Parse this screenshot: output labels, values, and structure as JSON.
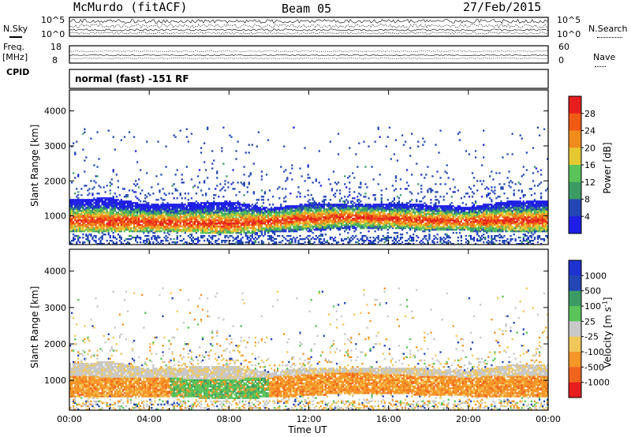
{
  "header": {
    "station": "McMurdo (fitACF)",
    "beam": "Beam 05",
    "date": "27/Feb/2015"
  },
  "strip_nsky": {
    "label": "N.Sky",
    "right_label": "N.Search",
    "ticks_left": [
      "10^5",
      "10^0"
    ],
    "ticks_right": [
      "10^5",
      "10^0"
    ]
  },
  "strip_freq": {
    "label_top": "Freq.",
    "label_bottom": "[MHz]",
    "right_label": "Nave",
    "ticks_left": [
      "18",
      "8"
    ],
    "ticks_right": [
      "60",
      "0"
    ]
  },
  "cpid": {
    "label": "CPID",
    "text": "normal (fast) -151 RF"
  },
  "colors": {
    "power": [
      "#1e1ee6",
      "#2346b4",
      "#3c9b64",
      "#5ac35a",
      "#e6c832",
      "#f08c1e",
      "#f05a14",
      "#e61e1e"
    ],
    "velocity": [
      "#e61e1e",
      "#f0641e",
      "#f59628",
      "#f0c85a",
      "#c8c8c8",
      "#5ac35a",
      "#3c9b64",
      "#2346b4",
      "#1e32d2"
    ]
  },
  "chart_data": [
    {
      "type": "heatmap",
      "title": "",
      "xlabel": "",
      "ylabel": "Slant Range [km]",
      "xlim": [
        "00:00",
        "00:00"
      ],
      "ylim": [
        180,
        4600
      ],
      "x_ticks": [
        "00:00",
        "04:00",
        "08:00",
        "12:00",
        "16:00",
        "20:00",
        "00:00"
      ],
      "y_ticks": [
        1000,
        2000,
        3000,
        4000
      ],
      "colorbar": {
        "label": "Power [dB]",
        "ticks": [
          "28",
          "24",
          "20",
          "16",
          "12",
          "8",
          "4"
        ],
        "range": [
          0,
          32
        ]
      },
      "field": "power",
      "band": [
        {
          "time_h": 0,
          "lower_km": 520,
          "upper_km": 1450,
          "core_km": 850
        },
        {
          "time_h": 2,
          "lower_km": 540,
          "upper_km": 1500,
          "core_km": 820
        },
        {
          "time_h": 4,
          "lower_km": 520,
          "upper_km": 1300,
          "core_km": 800
        },
        {
          "time_h": 6,
          "lower_km": 500,
          "upper_km": 1350,
          "core_km": 780
        },
        {
          "time_h": 8,
          "lower_km": 480,
          "upper_km": 1400,
          "core_km": 760
        },
        {
          "time_h": 10,
          "lower_km": 500,
          "upper_km": 1200,
          "core_km": 820
        },
        {
          "time_h": 12,
          "lower_km": 560,
          "upper_km": 1350,
          "core_km": 900
        },
        {
          "time_h": 14,
          "lower_km": 620,
          "upper_km": 1300,
          "core_km": 950
        },
        {
          "time_h": 16,
          "lower_km": 620,
          "upper_km": 1350,
          "core_km": 900
        },
        {
          "time_h": 18,
          "lower_km": 560,
          "upper_km": 1300,
          "core_km": 850
        },
        {
          "time_h": 20,
          "lower_km": 540,
          "upper_km": 1250,
          "core_km": 820
        },
        {
          "time_h": 22,
          "lower_km": 520,
          "upper_km": 1400,
          "core_km": 850
        },
        {
          "time_h": 24,
          "lower_km": 520,
          "upper_km": 1400,
          "core_km": 850
        }
      ]
    },
    {
      "type": "heatmap",
      "title": "",
      "xlabel": "Time UT",
      "ylabel": "Slant Range [km]",
      "xlim": [
        "00:00",
        "00:00"
      ],
      "ylim": [
        180,
        4600
      ],
      "x_ticks": [
        "00:00",
        "04:00",
        "08:00",
        "12:00",
        "16:00",
        "20:00",
        "00:00"
      ],
      "y_ticks": [
        1000,
        2000,
        3000,
        4000
      ],
      "colorbar": {
        "label": "Velocity [m s^-1]",
        "ticks": [
          "1000",
          "500",
          "100",
          "25",
          "-25",
          "-100",
          "-500",
          "-1000"
        ],
        "range": [
          -1000,
          1000
        ]
      },
      "field": "velocity"
    }
  ]
}
